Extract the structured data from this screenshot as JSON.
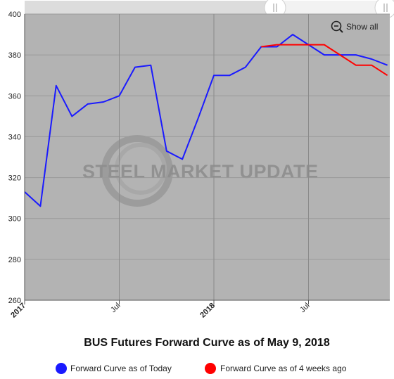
{
  "chart_data": {
    "type": "line",
    "title": "BUS Futures Forward Curve as of May 9, 2018",
    "xlabel": "",
    "ylabel": "",
    "ylim": [
      260,
      400
    ],
    "yticks": [
      260,
      280,
      300,
      320,
      340,
      360,
      380,
      400
    ],
    "xticks": [
      {
        "date": "2017-01",
        "label": "2017",
        "bold": true
      },
      {
        "date": "2017-07",
        "label": "Jul",
        "bold": false
      },
      {
        "date": "2018-01",
        "label": "2018",
        "bold": true
      },
      {
        "date": "2018-07",
        "label": "Jul",
        "bold": false
      }
    ],
    "x_range": [
      "2017-01",
      "2018-10"
    ],
    "grid": true,
    "legend_position": "bottom",
    "show_all_label": "Show all",
    "watermark": "STEEL MARKET UPDATE",
    "series": [
      {
        "name": "Forward Curve as of Today",
        "color": "#1a1aff",
        "points": [
          [
            "2017-01",
            313
          ],
          [
            "2017-02",
            306
          ],
          [
            "2017-03",
            365
          ],
          [
            "2017-04",
            350
          ],
          [
            "2017-05",
            356
          ],
          [
            "2017-06",
            357
          ],
          [
            "2017-07",
            360
          ],
          [
            "2017-08",
            374
          ],
          [
            "2017-09",
            375
          ],
          [
            "2017-10",
            333
          ],
          [
            "2017-11",
            329
          ],
          [
            "2017-12",
            349
          ],
          [
            "2018-01",
            370
          ],
          [
            "2018-02",
            370
          ],
          [
            "2018-03",
            374
          ],
          [
            "2018-04",
            384
          ],
          [
            "2018-05",
            384
          ],
          [
            "2018-06",
            390
          ],
          [
            "2018-07",
            385
          ],
          [
            "2018-08",
            380
          ],
          [
            "2018-09",
            380
          ],
          [
            "2018-10",
            380
          ],
          [
            "2018-11",
            378
          ],
          [
            "2018-12",
            375
          ]
        ]
      },
      {
        "name": "Forward Curve as of 4 weeks ago",
        "color": "#ff0000",
        "points": [
          [
            "2018-04",
            384
          ],
          [
            "2018-05",
            385
          ],
          [
            "2018-06",
            385
          ],
          [
            "2018-07",
            385
          ],
          [
            "2018-08",
            385
          ],
          [
            "2018-09",
            380
          ],
          [
            "2018-10",
            375
          ],
          [
            "2018-11",
            375
          ],
          [
            "2018-12",
            370
          ]
        ]
      }
    ]
  }
}
